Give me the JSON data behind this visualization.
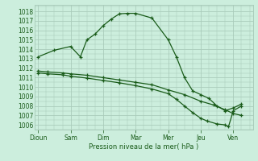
{
  "xlabel": "Pression niveau de la mer( hPa )",
  "background_color": "#cceedd",
  "grid_color": "#aaccbb",
  "line_color": "#1a5c1a",
  "tick_label_color": "#1a5c1a",
  "x_labels": [
    "Dioun",
    "Sam",
    "Dim",
    "Mar",
    "Mer",
    "Jeu",
    "Ven"
  ],
  "x_positions": [
    0,
    1,
    2,
    3,
    4,
    5,
    6
  ],
  "xlim": [
    -0.1,
    6.6
  ],
  "ylim": [
    1005.5,
    1018.7
  ],
  "yticks": [
    1006,
    1007,
    1008,
    1009,
    1010,
    1011,
    1012,
    1013,
    1014,
    1015,
    1016,
    1017,
    1018
  ],
  "series1_x": [
    0.0,
    0.5,
    1.0,
    1.3,
    1.5,
    1.75,
    2.0,
    2.25,
    2.5,
    2.75,
    3.0,
    3.5,
    4.0,
    4.25,
    4.5,
    4.75,
    5.0,
    5.25,
    5.5,
    5.75,
    6.0,
    6.25
  ],
  "series1_y": [
    1013.2,
    1013.9,
    1014.3,
    1013.2,
    1015.0,
    1015.6,
    1016.5,
    1017.2,
    1017.75,
    1017.8,
    1017.8,
    1017.3,
    1015.0,
    1013.2,
    1011.0,
    1009.6,
    1009.2,
    1008.8,
    1008.0,
    1007.5,
    1007.8,
    1008.2
  ],
  "series2_x": [
    0.0,
    0.3,
    0.75,
    1.0,
    1.5,
    2.0,
    2.5,
    3.0,
    3.5,
    4.0,
    4.5,
    5.0,
    5.4,
    5.75,
    6.0,
    6.25
  ],
  "series2_y": [
    1011.7,
    1011.6,
    1011.5,
    1011.4,
    1011.25,
    1011.0,
    1010.75,
    1010.5,
    1010.25,
    1009.7,
    1009.2,
    1008.5,
    1008.1,
    1007.6,
    1007.2,
    1007.0
  ],
  "series3_x": [
    0.0,
    0.3,
    0.75,
    1.0,
    1.5,
    2.0,
    2.5,
    3.0,
    3.5,
    4.0,
    4.25,
    4.5,
    4.75,
    5.0,
    5.2,
    5.5,
    5.75,
    5.85,
    6.0,
    6.25
  ],
  "series3_y": [
    1011.5,
    1011.4,
    1011.3,
    1011.15,
    1010.95,
    1010.7,
    1010.45,
    1010.15,
    1009.8,
    1009.3,
    1008.7,
    1008.0,
    1007.3,
    1006.7,
    1006.4,
    1006.1,
    1006.0,
    1005.8,
    1007.5,
    1008.0
  ]
}
